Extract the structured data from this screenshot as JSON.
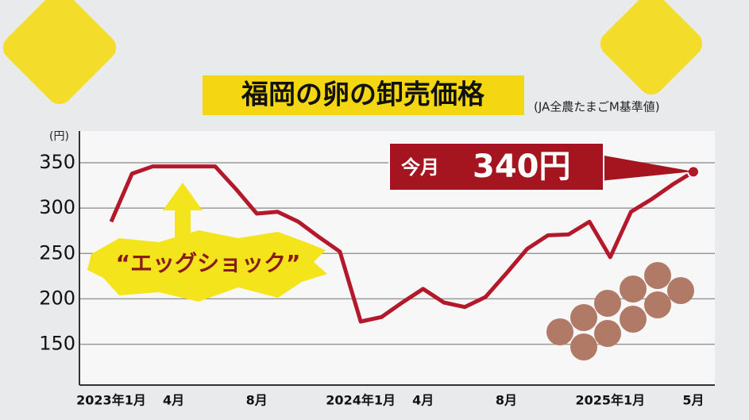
{
  "chart_data": {
    "type": "line",
    "title": "福岡の卵の卸売価格",
    "subtitle": "(JA全農たまごM基準値)",
    "y_unit": "(円)",
    "annotation": "“エッグショック”",
    "callout": "今月",
    "categories": [
      "2023年1月",
      null,
      null,
      "4月",
      null,
      null,
      null,
      "8月",
      null,
      null,
      null,
      null,
      "2024年1月",
      null,
      null,
      "4月",
      null,
      null,
      null,
      "8月",
      null,
      null,
      null,
      null,
      "2025年1月",
      null,
      null,
      null,
      "5月"
    ],
    "series": [
      {
        "name": "卸売価格",
        "color": "#b3192b",
        "values": [
          285,
          338,
          346,
          346,
          346,
          346,
          321,
          294,
          296,
          285,
          268,
          252,
          175,
          180,
          196,
          211,
          196,
          191,
          202,
          228,
          255,
          270,
          271,
          285,
          246,
          296,
          310,
          326,
          340
        ],
        "value_labels": [
          null,
          null,
          null,
          null,
          null,
          null,
          null,
          null,
          null,
          null,
          null,
          null,
          null,
          null,
          null,
          null,
          null,
          null,
          null,
          null,
          null,
          null,
          null,
          null,
          null,
          null,
          null,
          null,
          "340円"
        ]
      }
    ],
    "ylim": [
      105,
      385
    ],
    "yticks": [
      150,
      200,
      250,
      300,
      350
    ],
    "grid": true
  }
}
